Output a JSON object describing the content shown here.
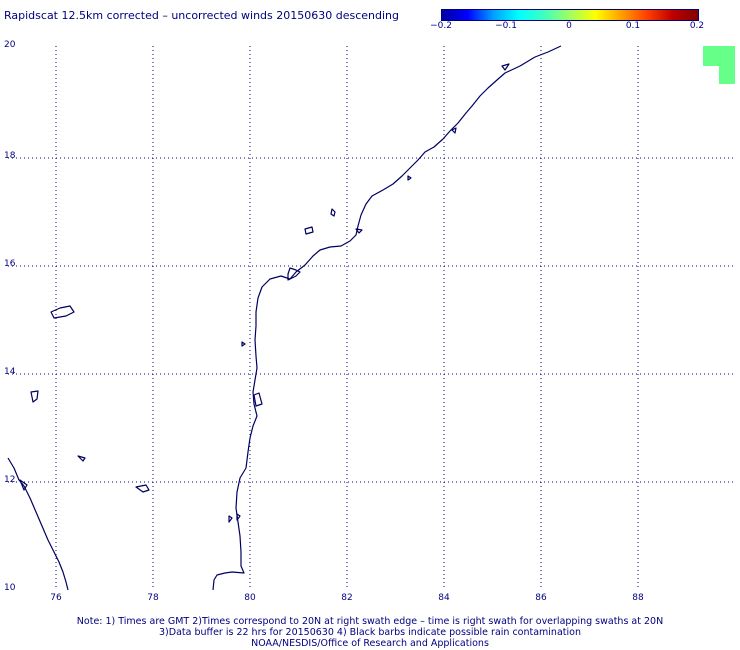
{
  "title": "Rapidscat 12.5km corrected – uncorrected winds 20150630 descending",
  "colorbar": {
    "ticks": [
      "−0.2",
      "−0.1",
      "0",
      "0.1",
      "0.2"
    ],
    "colors": [
      "#0000a0",
      "#0000ff",
      "#00a0ff",
      "#00ffff",
      "#40ffc0",
      "#a0ff60",
      "#ffff00",
      "#ffa000",
      "#ff4000",
      "#c00000",
      "#800000"
    ]
  },
  "axes": {
    "x_ticks": [
      "76",
      "78",
      "80",
      "82",
      "84",
      "86",
      "88"
    ],
    "y_ticks": [
      "20",
      "18",
      "16",
      "14",
      "12",
      "10"
    ]
  },
  "notes": {
    "line1": "Note: 1) Times are GMT 2)Times correspond to 20N at right swath edge – time is right swath for overlapping swaths at 20N",
    "line2": "3)Data buffer is 22 hrs for 20150630 4) Black barbs indicate possible rain contamination",
    "line3": "NOAA/NESDIS/Office of Research and Applications"
  },
  "swath_fill_color": "#66ff88",
  "coast_color": "#000060"
}
